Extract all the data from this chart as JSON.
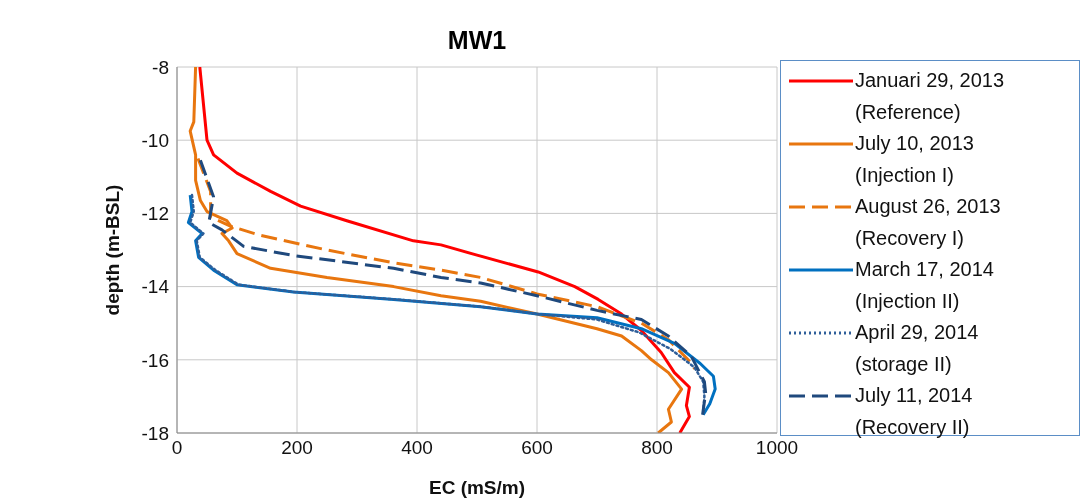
{
  "chart_data": {
    "type": "line",
    "title": "MW1",
    "xlabel": "EC (mS/m)",
    "ylabel": "depth (m-BSL)",
    "xlim": [
      0,
      1000
    ],
    "xticks": [
      0,
      200,
      400,
      600,
      800,
      1000
    ],
    "ylim": [
      -18,
      -8
    ],
    "yticks": [
      -18,
      -16,
      -14,
      -12,
      -10,
      -8
    ],
    "grid": true,
    "legend": "right",
    "marker": "none",
    "series": [
      {
        "name": "Januari 29, 2013 (Reference)",
        "color": "#ff0000",
        "line_style": "solid",
        "x": [
          38,
          50,
          61,
          100,
          156,
          206,
          283,
          394,
          440,
          500,
          602,
          663,
          702,
          741,
          774,
          807,
          829,
          854,
          849,
          854,
          838
        ],
        "values": [
          -8,
          -10,
          -10.4,
          -10.9,
          -11.4,
          -11.8,
          -12.2,
          -12.75,
          -12.86,
          -13.14,
          -13.6,
          -14,
          -14.35,
          -14.75,
          -15.2,
          -15.8,
          -16.35,
          -16.75,
          -17.25,
          -17.55,
          -18
        ]
      },
      {
        "name": "July 10, 2013 (Injection I)",
        "color": "#e8760f",
        "line_style": "solid",
        "x": [
          31,
          28,
          22,
          31,
          31,
          39,
          50,
          83,
          92,
          75,
          86,
          100,
          156,
          250,
          361,
          440,
          506,
          600,
          700,
          741,
          774,
          791,
          819,
          841,
          819,
          824,
          802
        ],
        "values": [
          -8,
          -9.5,
          -9.75,
          -10.4,
          -11.1,
          -11.65,
          -11.95,
          -12.2,
          -12.4,
          -12.55,
          -12.75,
          -13.1,
          -13.5,
          -13.75,
          -14,
          -14.25,
          -14.4,
          -14.75,
          -15.15,
          -15.35,
          -15.75,
          -16,
          -16.35,
          -16.8,
          -17.35,
          -17.7,
          -18
        ]
      },
      {
        "name": "August 26, 2013 (Recovery I)",
        "color": "#e8760f",
        "line_style": "dashed",
        "x": [
          35,
          56,
          56,
          89,
          139,
          250,
          361,
          440,
          506,
          600,
          700,
          774,
          819,
          852,
          863
        ],
        "values": [
          -10.5,
          -11.4,
          -12.1,
          -12.35,
          -12.6,
          -13,
          -13.35,
          -13.55,
          -13.75,
          -14.2,
          -14.55,
          -15,
          -15.45,
          -16,
          -16.25
        ]
      },
      {
        "name": "March 17, 2014 (Injection II)",
        "color": "#0070c0",
        "line_style": "solid",
        "x": [
          22,
          25,
          19,
          42,
          31,
          36,
          61,
          100,
          194,
          361,
          506,
          600,
          700,
          774,
          829,
          872,
          894,
          897,
          888,
          877
        ],
        "values": [
          -11.5,
          -11.95,
          -12.25,
          -12.55,
          -12.75,
          -13.2,
          -13.55,
          -13.95,
          -14.15,
          -14.35,
          -14.55,
          -14.75,
          -14.85,
          -15.15,
          -15.55,
          -16.1,
          -16.45,
          -16.8,
          -17.2,
          -17.5
        ]
      },
      {
        "name": "April 29, 2014 (storage II)",
        "color": "#2e5e99",
        "line_style": "dotted",
        "x": [
          25,
          28,
          22,
          44,
          33,
          38,
          64,
          103,
          197,
          364,
          508,
          602,
          700,
          770,
          822,
          862,
          877,
          879,
          877
        ],
        "values": [
          -11.5,
          -11.95,
          -12.25,
          -12.55,
          -12.75,
          -13.2,
          -13.55,
          -13.95,
          -14.15,
          -14.35,
          -14.55,
          -14.75,
          -14.9,
          -15.25,
          -15.7,
          -16.2,
          -16.6,
          -17,
          -17.45
        ]
      },
      {
        "name": "July 11, 2014 (Recovery II)",
        "color": "#1f497d",
        "line_style": "dashed",
        "x": [
          39,
          61,
          53,
          75,
          111,
          194,
          361,
          440,
          506,
          600,
          700,
          774,
          819,
          857,
          879,
          881,
          876
        ],
        "values": [
          -10.55,
          -11.55,
          -12.25,
          -12.45,
          -12.9,
          -13.15,
          -13.5,
          -13.75,
          -13.9,
          -14.25,
          -14.65,
          -14.9,
          -15.35,
          -15.9,
          -16.6,
          -16.9,
          -17.5
        ]
      }
    ]
  }
}
